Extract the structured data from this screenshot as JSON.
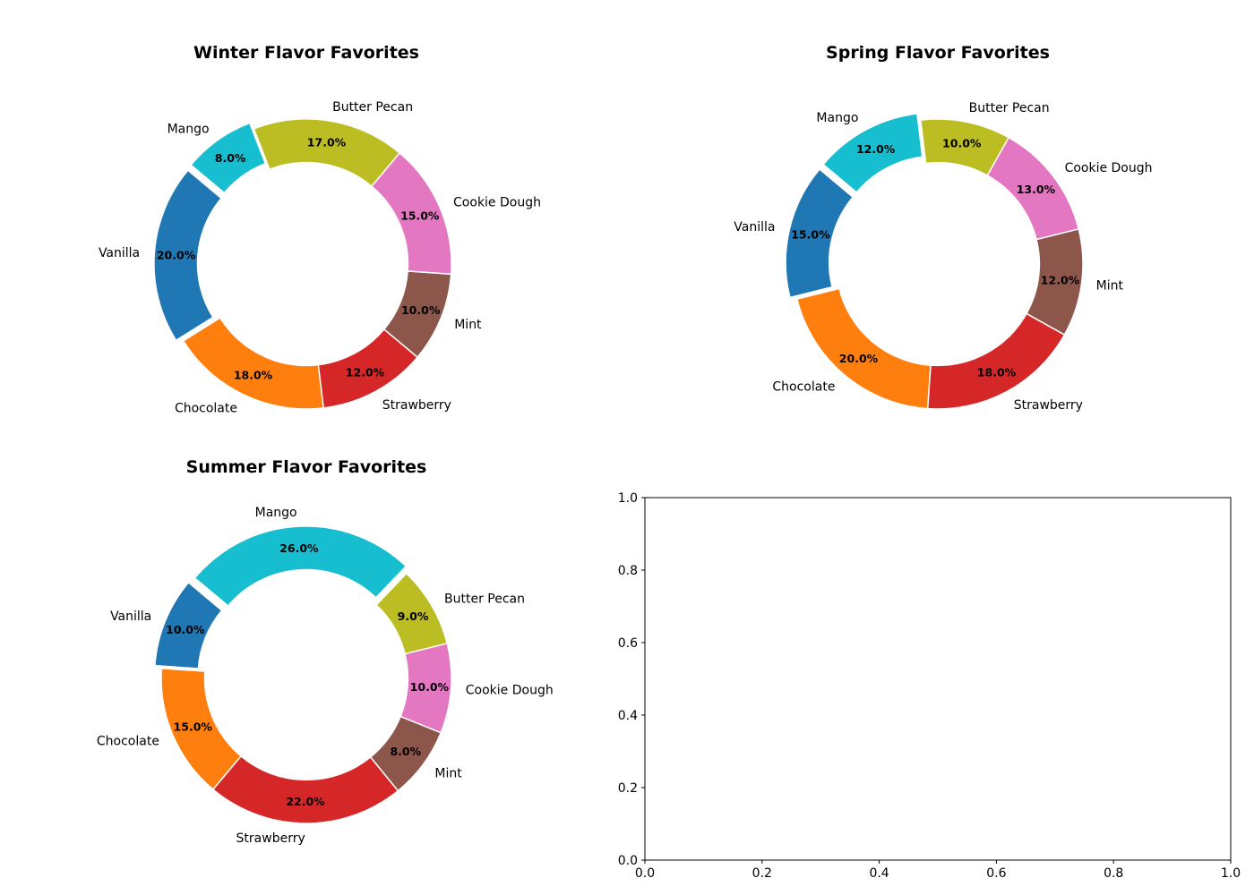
{
  "chart_data": [
    {
      "type": "pie",
      "title": "Winter Flavor Favorites",
      "categories": [
        "Vanilla",
        "Chocolate",
        "Strawberry",
        "Mint",
        "Cookie Dough",
        "Butter Pecan",
        "Mango"
      ],
      "values": [
        20.0,
        18.0,
        12.0,
        10.0,
        15.0,
        17.0,
        8.0
      ],
      "pct_labels": [
        "20.0%",
        "18.0%",
        "12.0%",
        "10.0%",
        "15.0%",
        "17.0%",
        "8.0%"
      ],
      "colors": [
        "#1f77b4",
        "#ff7f0e",
        "#d62728",
        "#8c564b",
        "#e377c2",
        "#bcbd22",
        "#17becf"
      ],
      "start_angle_deg": 140,
      "counterclock": true,
      "donut": true,
      "exploded": [
        "Vanilla",
        "Mango"
      ]
    },
    {
      "type": "pie",
      "title": "Spring Flavor Favorites",
      "categories": [
        "Vanilla",
        "Chocolate",
        "Strawberry",
        "Mint",
        "Cookie Dough",
        "Butter Pecan",
        "Mango"
      ],
      "values": [
        15.0,
        20.0,
        18.0,
        12.0,
        13.0,
        10.0,
        12.0
      ],
      "pct_labels": [
        "15.0%",
        "20.0%",
        "18.0%",
        "12.0%",
        "13.0%",
        "10.0%",
        "12.0%"
      ],
      "colors": [
        "#1f77b4",
        "#ff7f0e",
        "#d62728",
        "#8c564b",
        "#e377c2",
        "#bcbd22",
        "#17becf"
      ],
      "start_angle_deg": 140,
      "counterclock": true,
      "donut": true,
      "exploded": [
        "Vanilla",
        "Mango"
      ]
    },
    {
      "type": "pie",
      "title": "Summer Flavor Favorites",
      "categories": [
        "Vanilla",
        "Chocolate",
        "Strawberry",
        "Mint",
        "Cookie Dough",
        "Butter Pecan",
        "Mango"
      ],
      "values": [
        10.0,
        15.0,
        22.0,
        8.0,
        10.0,
        9.0,
        26.0
      ],
      "pct_labels": [
        "10.0%",
        "15.0%",
        "22.0%",
        "8.0%",
        "10.0%",
        "9.0%",
        "26.0%"
      ],
      "colors": [
        "#1f77b4",
        "#ff7f0e",
        "#d62728",
        "#8c564b",
        "#e377c2",
        "#bcbd22",
        "#17becf"
      ],
      "start_angle_deg": 140,
      "counterclock": true,
      "donut": true,
      "exploded": [
        "Vanilla",
        "Mango"
      ]
    },
    {
      "type": "scatter",
      "title": "",
      "series": [],
      "xlim": [
        0.0,
        1.0
      ],
      "ylim": [
        0.0,
        1.0
      ],
      "x_ticks": [
        "0.0",
        "0.2",
        "0.4",
        "0.6",
        "0.8",
        "1.0"
      ],
      "y_ticks": [
        "0.0",
        "0.2",
        "0.4",
        "0.6",
        "0.8",
        "1.0"
      ],
      "grid": false
    }
  ]
}
